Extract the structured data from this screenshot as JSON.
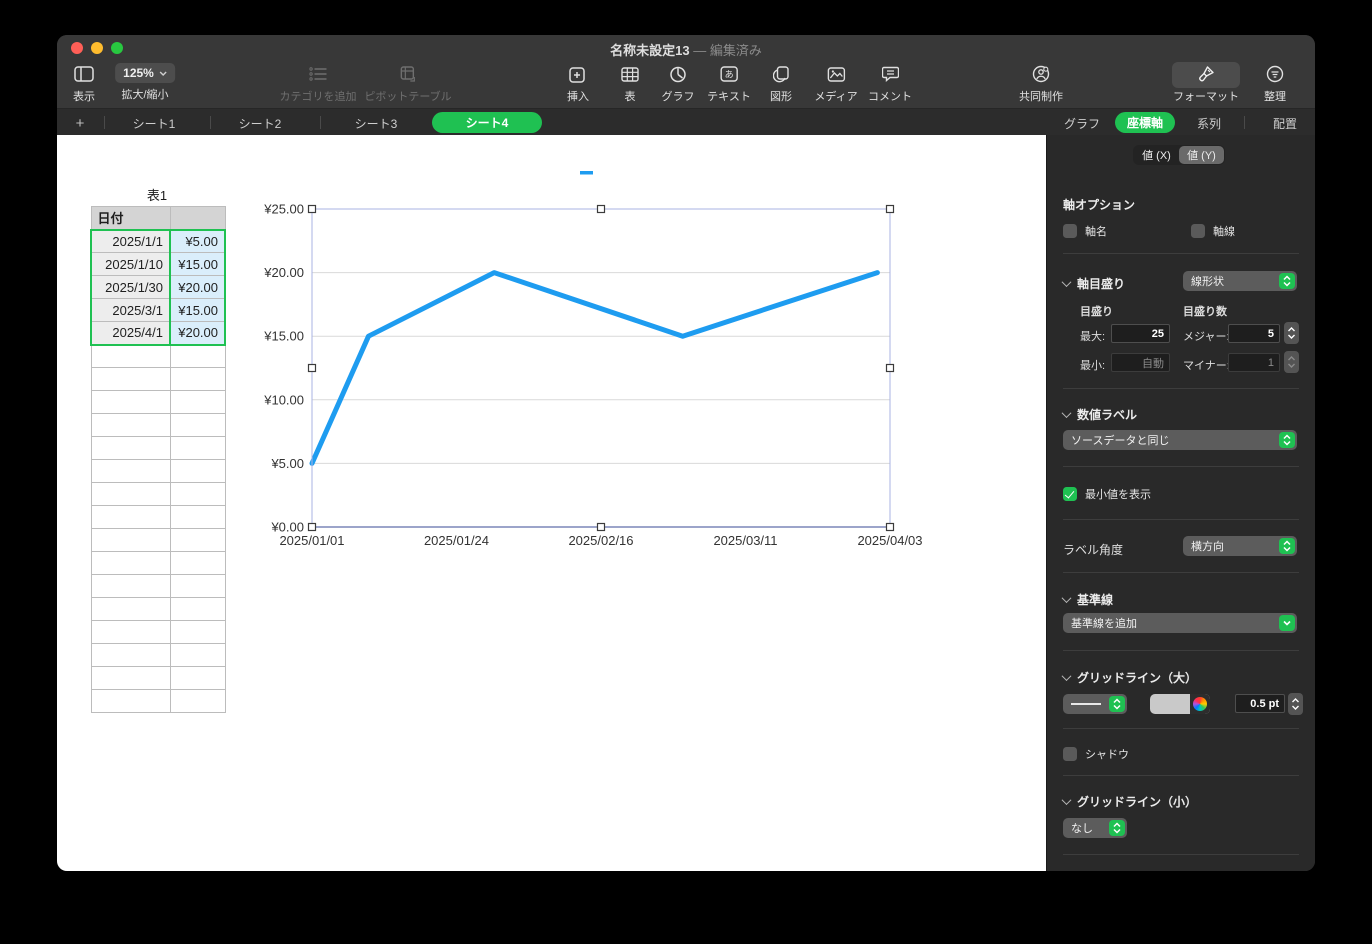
{
  "window": {
    "title": "名称未設定13",
    "separator": "—",
    "status": "編集済み"
  },
  "toolbar": {
    "view": "表示",
    "zoom_value": "125%",
    "zoom_label": "拡大/縮小",
    "add_category": "カテゴリを追加",
    "pivot_table": "ピボットテーブル",
    "insert": "挿入",
    "table": "表",
    "chart": "グラフ",
    "text": "テキスト",
    "shape": "図形",
    "media": "メディア",
    "comment": "コメント",
    "collaborate": "共同制作",
    "format": "フォーマット",
    "organize": "整理",
    "icons": [
      "sidebar-icon",
      "chevron-down-icon",
      "list-icon",
      "pivot-icon",
      "insert-icon",
      "table-icon",
      "chart-icon",
      "text-icon",
      "shape-icon",
      "media-icon",
      "comment-icon",
      "collaborate-icon",
      "format-brush-icon",
      "organize-icon"
    ]
  },
  "sheet_tabs": {
    "add": "+",
    "tabs": [
      {
        "label": "シート1",
        "active": false
      },
      {
        "label": "シート2",
        "active": false
      },
      {
        "label": "シート3",
        "active": false
      },
      {
        "label": "シート4",
        "active": true
      }
    ]
  },
  "inspector_tabs": [
    {
      "label": "グラフ",
      "active": false
    },
    {
      "label": "座標軸",
      "active": true
    },
    {
      "label": "系列",
      "active": false
    },
    {
      "label": "配置",
      "active": false
    }
  ],
  "inspector": {
    "axis_segments": {
      "options": [
        "値 (X)",
        "値 (Y)"
      ],
      "selected": 1
    },
    "axis_options_label": "軸オプション",
    "axis_name_label": "軸名",
    "axis_name_checked": false,
    "axis_line_label": "軸線",
    "axis_line_checked": false,
    "axis_scale": {
      "label": "軸目盛り",
      "type_value": "線形状"
    },
    "scale_group": {
      "label": "目盛り",
      "max_label": "最大:",
      "max_value": "25",
      "min_label": "最小:",
      "min_value": "自動"
    },
    "steps_group": {
      "label": "目盛り数",
      "major_label": "メジャー:",
      "major_value": "5",
      "minor_label": "マイナー:",
      "minor_value": "1"
    },
    "value_labels": {
      "label": "数値ラベル",
      "format_value": "ソースデータと同じ"
    },
    "show_min_label": "最小値を表示",
    "show_min_checked": true,
    "label_angle": {
      "label": "ラベル角度",
      "value": "横方向"
    },
    "reference_lines": {
      "label": "基準線",
      "add_value": "基準線を追加"
    },
    "major_gridlines": {
      "label": "グリッドライン（大）",
      "width_value": "0.5 pt"
    },
    "shadow_label": "シャドウ",
    "shadow_checked": false,
    "minor_gridlines": {
      "label": "グリッドライン（小）",
      "value": "なし"
    }
  },
  "sheet": {
    "table_title": "表1",
    "table": {
      "headers": [
        "日付",
        ""
      ],
      "rows": [
        [
          "2025/1/1",
          "¥5.00"
        ],
        [
          "2025/1/10",
          "¥15.00"
        ],
        [
          "2025/1/30",
          "¥20.00"
        ],
        [
          "2025/3/1",
          "¥15.00"
        ],
        [
          "2025/4/1",
          "¥20.00"
        ]
      ],
      "empty_rows": 16
    }
  },
  "chart_data": {
    "type": "line",
    "x": [
      "2025/1/1",
      "2025/1/10",
      "2025/1/30",
      "2025/3/1",
      "2025/4/1"
    ],
    "series": [
      {
        "name": "",
        "values": [
          5,
          15,
          20,
          15,
          20
        ]
      }
    ],
    "x_tick_labels": [
      "2025/01/01",
      "2025/01/24",
      "2025/02/16",
      "2025/03/11",
      "2025/04/03"
    ],
    "y_ticks": [
      0,
      5,
      10,
      15,
      20,
      25
    ],
    "y_tick_labels": [
      "¥0.00",
      "¥5.00",
      "¥10.00",
      "¥15.00",
      "¥20.00",
      "¥25.00"
    ],
    "ylim": [
      0,
      25
    ],
    "title": "",
    "xlabel": "",
    "ylabel": "",
    "grid": true,
    "legend_position": "top",
    "line_color": "#1e9cf0",
    "gridline_color": "#d9d9d9",
    "baseline_color": "#1e2f63",
    "selection_color": "#a9b3e3",
    "selected": true
  },
  "colors": {
    "accent_green": "#1fc152",
    "line_blue": "#1e9cf0",
    "traffic_red": "#ff5f57",
    "traffic_yellow": "#febc2e",
    "traffic_green": "#28c840"
  }
}
